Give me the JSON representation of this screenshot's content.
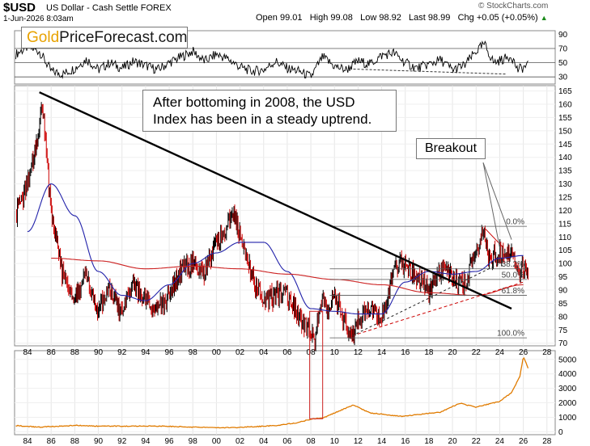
{
  "header": {
    "symbol": "$USD",
    "description": "US Dollar - Cash Settle",
    "exchange": "FOREX",
    "timestamp": "1-Jun-2026 8:03am",
    "open_label": "Open",
    "open": "99.01",
    "high_label": "High",
    "high": "99.08",
    "low_label": "Low",
    "low": "98.92",
    "last_label": "Last",
    "last": "98.99",
    "chg_label": "Chg",
    "chg": "+0.05 (+0.05%)",
    "copyright": "© StockCharts.com"
  },
  "logo": {
    "part1": "Gold",
    "part2": "PriceForecast.com"
  },
  "annotation": {
    "line1": "After bottoming in 2008, the USD",
    "line2": "Index has been in a steady uptrend."
  },
  "breakout_label": "Breakout",
  "colors": {
    "price_up": "#000000",
    "price_down": "#cc0000",
    "ma_short": "#2222aa",
    "ma_long": "#cc2222",
    "trendline": "#000000",
    "fib": "#555555",
    "support": "#cc0000",
    "gold": "#e07b00",
    "rsi": "#000000"
  },
  "chart_data": [
    {
      "type": "line",
      "panel": "rsi",
      "yticks": [
        90,
        70,
        50,
        30
      ],
      "ylim": [
        20,
        95
      ],
      "reference_lines": [
        70,
        50,
        30
      ],
      "x": [
        1983.0,
        1984.0,
        1985.0,
        1986.0,
        1987.0,
        1988.0,
        1989.0,
        1990.0,
        1991.0,
        1992.0,
        1993.0,
        1994.0,
        1995.0,
        1996.0,
        1997.0,
        1998.0,
        1999.0,
        2000.0,
        2001.0,
        2002.0,
        2003.0,
        2004.0,
        2005.0,
        2006.0,
        2007.0,
        2008.0,
        2009.0,
        2010.0,
        2011.0,
        2012.0,
        2013.0,
        2014.0,
        2015.0,
        2016.0,
        2017.0,
        2018.0,
        2019.0,
        2020.0,
        2021.0,
        2022.0,
        2022.7,
        2023.5,
        2024.5,
        2025.0,
        2025.5,
        2026.4
      ],
      "values": [
        62,
        72,
        66,
        38,
        34,
        42,
        55,
        40,
        50,
        42,
        52,
        46,
        40,
        50,
        58,
        66,
        52,
        62,
        55,
        44,
        38,
        40,
        52,
        42,
        38,
        30,
        58,
        45,
        40,
        52,
        48,
        60,
        64,
        50,
        42,
        48,
        54,
        40,
        46,
        66,
        76,
        50,
        56,
        60,
        40,
        46
      ]
    },
    {
      "type": "line",
      "panel": "price",
      "yticks": [
        70,
        75,
        80,
        85,
        90,
        95,
        100,
        105,
        110,
        115,
        120,
        125,
        130,
        135,
        140,
        145,
        150,
        155,
        160,
        165
      ],
      "ylim": [
        69,
        167
      ],
      "xticks": [
        "84",
        "86",
        "88",
        "90",
        "92",
        "94",
        "96",
        "98",
        "00",
        "02",
        "04",
        "06",
        "08",
        "10",
        "12",
        "14",
        "16",
        "18",
        "20",
        "22",
        "24",
        "26",
        "28"
      ],
      "series": [
        {
          "x": [
            1983.0,
            1984.0,
            1985.0,
            1985.2,
            1986.0,
            1987.0,
            1988.0,
            1989.0,
            1990.0,
            1991.0,
            1992.0,
            1993.0,
            1994.0,
            1995.0,
            1996.0,
            1997.0,
            1998.0,
            1999.0,
            2000.0,
            2001.0,
            2001.5,
            2002.0,
            2003.0,
            2004.0,
            2005.0,
            2006.0,
            2007.0,
            2008.0,
            2008.3,
            2009.0,
            2009.5,
            2010.0,
            2011.0,
            2011.5,
            2012.0,
            2013.0,
            2014.0,
            2014.5,
            2015.0,
            2016.0,
            2017.0,
            2018.0,
            2019.0,
            2020.0,
            2021.0,
            2022.0,
            2022.7,
            2023.0,
            2024.0,
            2024.5,
            2025.0,
            2025.5,
            2026.4
          ],
          "values": [
            118,
            130,
            150,
            162,
            120,
            95,
            88,
            95,
            82,
            90,
            80,
            92,
            86,
            83,
            87,
            98,
            100,
            97,
            108,
            115,
            120,
            110,
            95,
            85,
            88,
            88,
            80,
            74,
            71,
            89,
            82,
            88,
            76,
            73,
            80,
            82,
            80,
            85,
            99,
            100,
            95,
            90,
            97,
            95,
            92,
            104,
            114,
            102,
            105,
            102,
            108,
            97,
            99
          ]
        },
        {
          "x": [
            1984,
            1986,
            1988,
            1990,
            1992,
            1994,
            1996,
            1998,
            2000,
            2002,
            2004,
            2006,
            2008,
            2010,
            2012,
            2014,
            2016,
            2018,
            2020,
            2022,
            2024,
            2026
          ],
          "values": [
            112,
            130,
            118,
            97,
            88,
            86,
            92,
            100,
            104,
            108,
            108,
            97,
            83,
            82,
            81,
            81,
            93,
            97,
            96,
            97,
            102,
            103
          ]
        },
        {
          "x": [
            1986,
            1990,
            1994,
            1998,
            2002,
            2006,
            2010,
            2014,
            2018,
            2022,
            2026
          ],
          "values": [
            102,
            101,
            98,
            99,
            98,
            96,
            94,
            92,
            89,
            88,
            92
          ]
        }
      ],
      "trendline": {
        "x": [
          1985.0,
          2025.0
        ],
        "values": [
          164.5,
          83
        ]
      },
      "fib_levels": [
        {
          "label": "0.0%",
          "value": 114
        },
        {
          "label": "38.2%",
          "value": 98
        },
        {
          "label": "50.0%",
          "value": 94
        },
        {
          "label": "61.8%",
          "value": 88
        },
        {
          "label": "100.0%",
          "value": 72
        }
      ],
      "support_lines": [
        {
          "x": [
            2011.5,
            2026.0
          ],
          "values": [
            72.8,
            93
          ]
        },
        {
          "x": [
            2011.5,
            2024.0
          ],
          "values": [
            72.8,
            100
          ]
        }
      ]
    },
    {
      "type": "line",
      "panel": "gold",
      "yticks": [
        5000,
        4000,
        3000,
        2000,
        1000,
        0
      ],
      "ylim": [
        -200,
        5600
      ],
      "xticks": [
        "84",
        "86",
        "88",
        "90",
        "92",
        "94",
        "96",
        "98",
        "00",
        "02",
        "04",
        "06",
        "08",
        "10",
        "12",
        "14",
        "16",
        "18",
        "20",
        "22",
        "24",
        "26",
        "28"
      ],
      "x": [
        1983.0,
        1985.0,
        1988.0,
        1990.0,
        1995.0,
        2000.0,
        2002.0,
        2005.0,
        2007.0,
        2008.0,
        2009.0,
        2011.6,
        2013.0,
        2015.8,
        2018.0,
        2019.0,
        2020.6,
        2022.0,
        2023.0,
        2024.0,
        2025.0,
        2025.7,
        2026.0,
        2026.4
      ],
      "values": [
        430,
        320,
        440,
        390,
        390,
        280,
        300,
        430,
        650,
        880,
        950,
        1850,
        1300,
        1060,
        1280,
        1350,
        1970,
        1700,
        1900,
        2100,
        2700,
        3800,
        5200,
        4400
      ]
    }
  ]
}
